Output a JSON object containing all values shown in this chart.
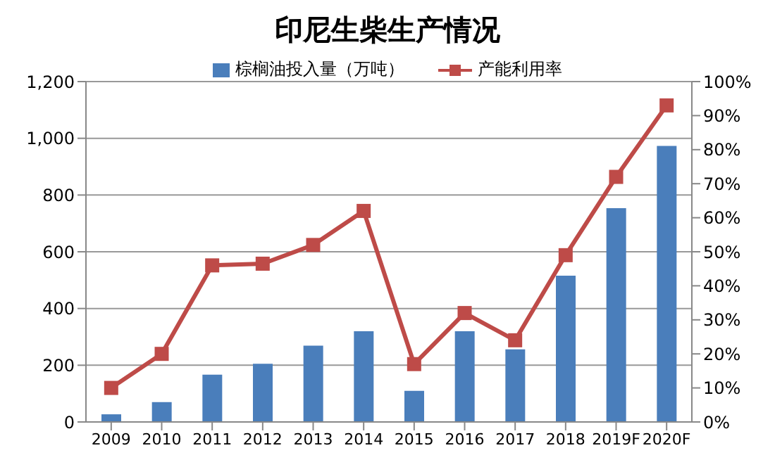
{
  "chart_data": {
    "type": "bar",
    "title": "印尼生柴生产情况",
    "categories": [
      "2009",
      "2010",
      "2011",
      "2012",
      "2013",
      "2014",
      "2015",
      "2016",
      "2017",
      "2018",
      "2019F",
      "2020F"
    ],
    "series": [
      {
        "name": "棕榈油投入量（万吨）",
        "color": "#4a7ebb",
        "values": [
          27,
          70,
          167,
          205,
          269,
          320,
          110,
          320,
          256,
          516,
          754,
          973
        ]
      },
      {
        "name": "产能利用率",
        "type": "line",
        "axis": "y2",
        "color": "#be4b48",
        "marker": "square",
        "values": [
          10,
          20,
          46,
          46.5,
          52,
          62,
          17,
          32,
          24,
          49,
          72,
          93
        ]
      }
    ],
    "ylim": [
      0,
      1200
    ],
    "yticks": [
      0,
      {
        "value": 200,
        "label": "200"
      },
      {
        "value": 400,
        "label": "400"
      },
      {
        "value": 600,
        "label": "600"
      },
      {
        "value": 800,
        "label": "800"
      },
      {
        "value": 1000,
        "label": "1,000"
      },
      {
        "value": 1200,
        "label": "1,200"
      }
    ],
    "y2lim": [
      0,
      100
    ],
    "y2ticks": [
      {
        "value": 0,
        "label": "0%"
      },
      {
        "value": 10,
        "label": "10%"
      },
      {
        "value": 20,
        "label": "20%"
      },
      {
        "value": 30,
        "label": "30%"
      },
      {
        "value": 40,
        "label": "40%"
      },
      {
        "value": 50,
        "label": "50%"
      },
      {
        "value": 60,
        "label": "60%"
      },
      {
        "value": 70,
        "label": "70%"
      },
      {
        "value": 80,
        "label": "80%"
      },
      {
        "value": 90,
        "label": "90%"
      },
      {
        "value": 100,
        "label": "100%"
      }
    ],
    "grid": "y",
    "legend": "top"
  }
}
